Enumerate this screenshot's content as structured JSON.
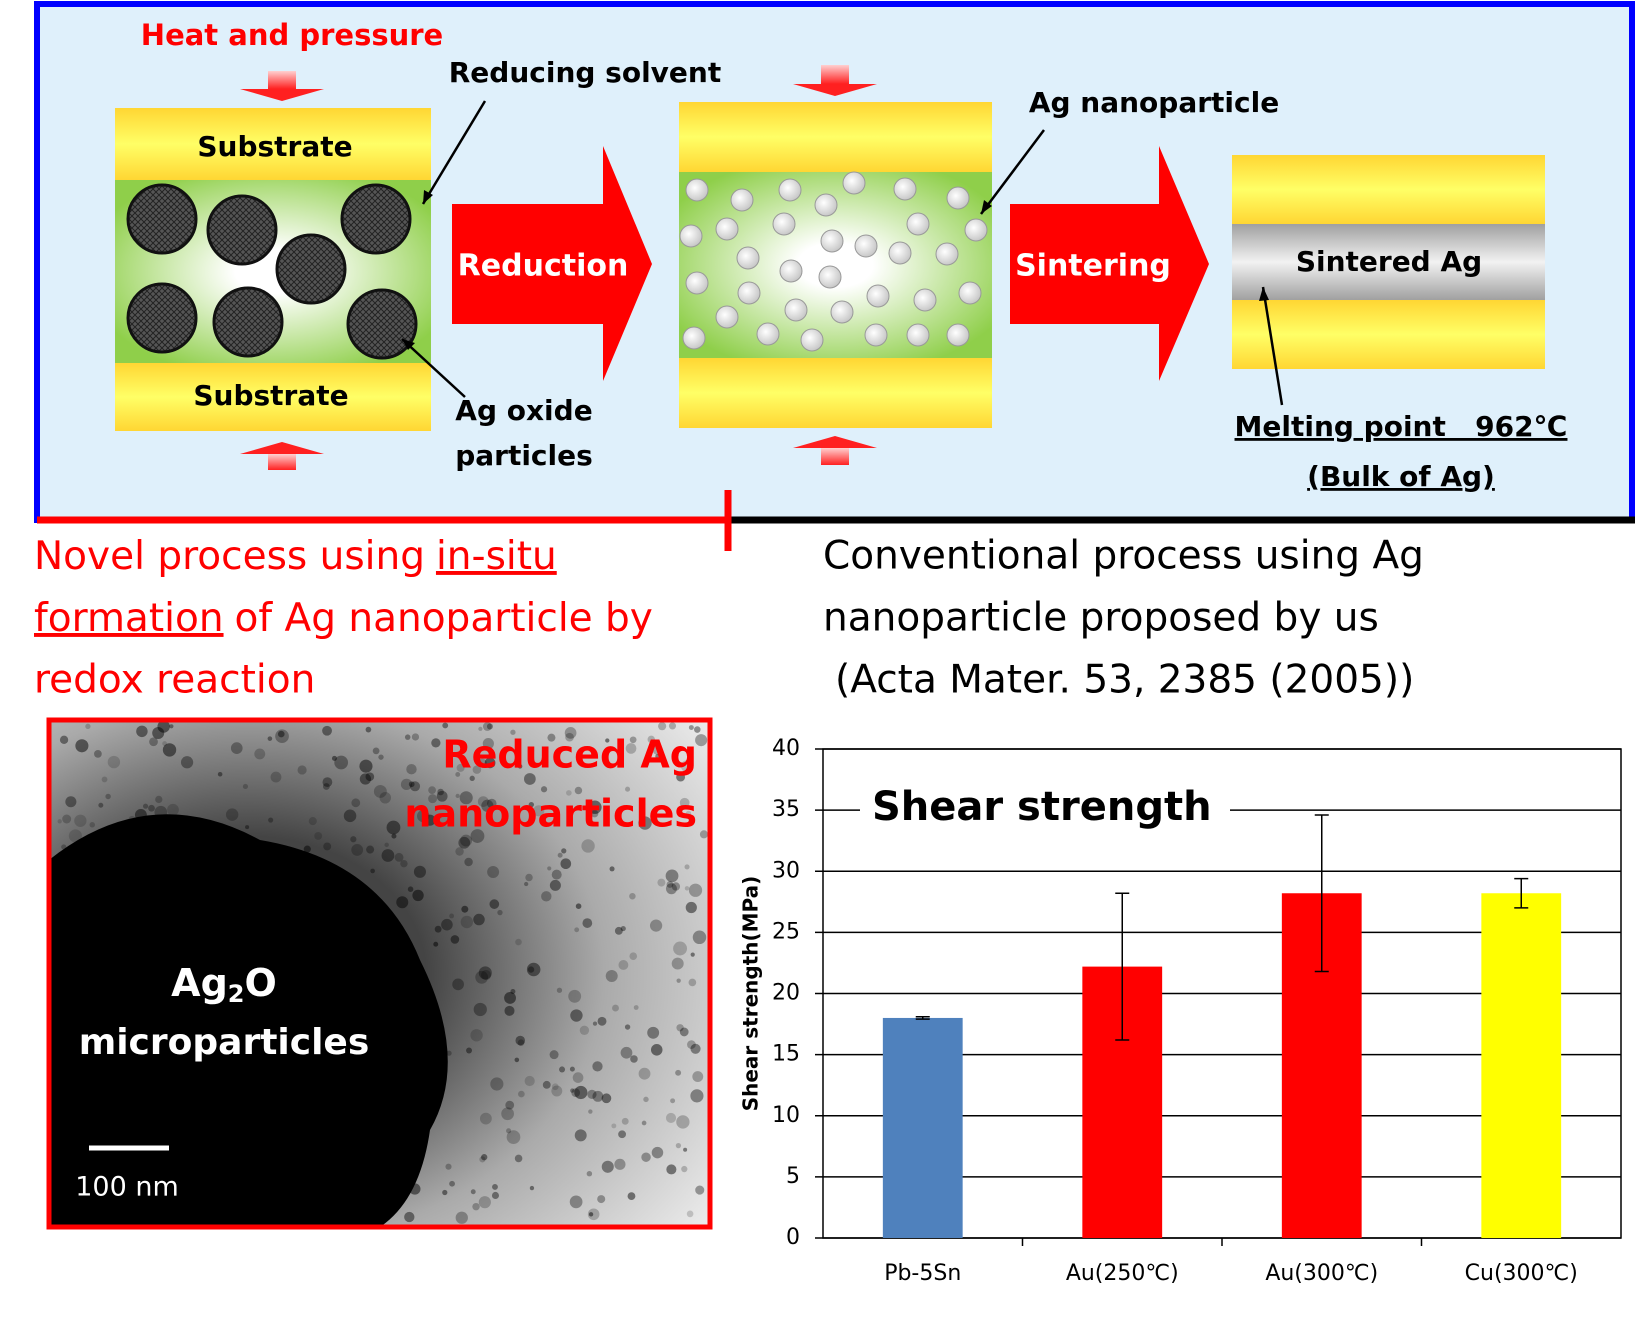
{
  "diagram": {
    "heat_label": "Heat and pressure",
    "reducing_solvent": "Reducing solvent",
    "substrate_top": "Substrate",
    "substrate_bottom": "Substrate",
    "ag_oxide": [
      "Ag oxide",
      "particles"
    ],
    "reduction": "Reduction",
    "ag_nanoparticle": "Ag nanoparticle",
    "sintering": "Sintering",
    "sintered_ag": "Sintered Ag",
    "melting_point": "Melting point   962℃",
    "bulk": "(Bulk of Ag)",
    "novel": [
      "Novel process using",
      "in-situ",
      "formation",
      "of Ag nanoparticle by",
      "redox reaction"
    ],
    "conventional": [
      "Conventional process using Ag",
      "nanoparticle proposed by us",
      "(Acta Mater. 53, 2385 (2005))"
    ],
    "image": {
      "reduced": [
        "Reduced Ag",
        "nanoparticles"
      ],
      "ag2o": [
        "Ag",
        "2",
        "O"
      ],
      "micro": "microparticles",
      "scale": "100 nm"
    }
  },
  "chart_data": {
    "type": "bar",
    "title": "Shear strength",
    "ylabel": "Shear strength(MPa)",
    "categories": [
      "Pb-5Sn",
      "Au(250℃)",
      "Au(300℃)",
      "Cu(300℃)"
    ],
    "values": [
      18,
      22.2,
      28.2,
      28.2
    ],
    "errors": [
      0.1,
      6,
      6.4,
      1.2
    ],
    "colors": [
      "#4f81bd",
      "#ff0000",
      "#ff0000",
      "#ffff00"
    ],
    "ylim": [
      0,
      40
    ],
    "yticks": [
      0,
      5,
      10,
      15,
      20,
      25,
      30,
      35,
      40
    ],
    "grid": true
  }
}
